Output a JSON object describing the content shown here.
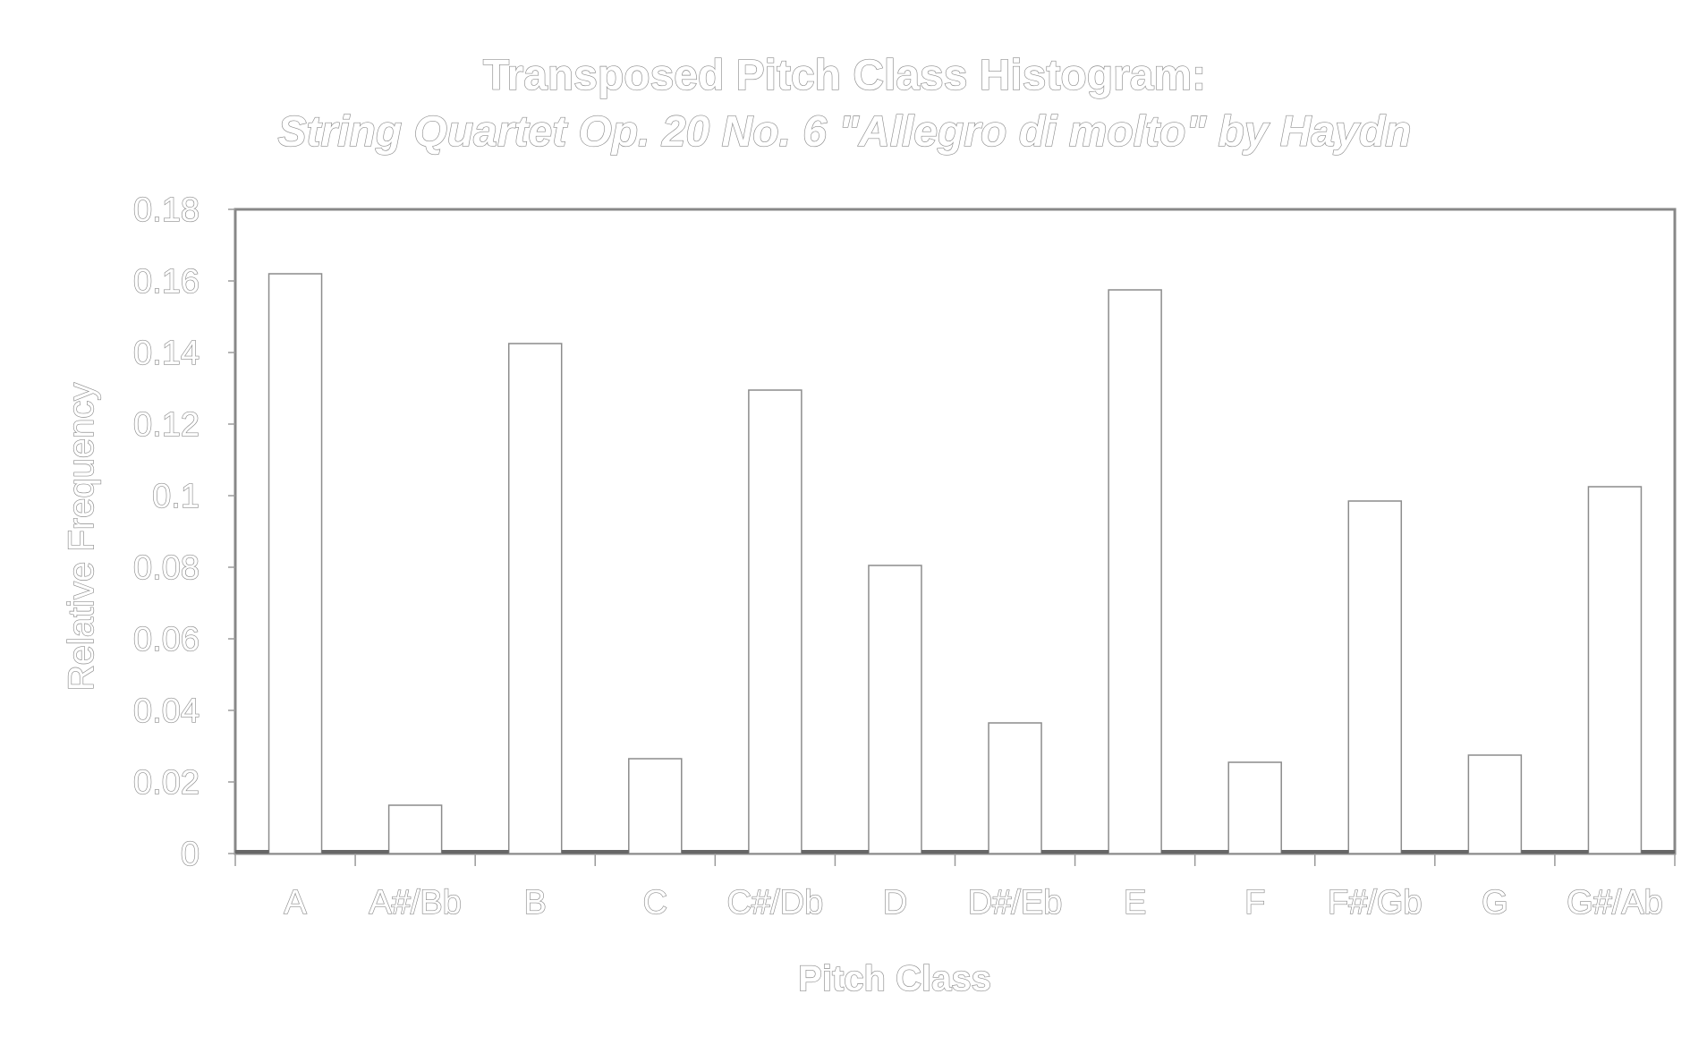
{
  "chart_data": {
    "type": "bar",
    "title": "Transposed Pitch Class Histogram:",
    "subtitle": "String Quartet Op. 20 No. 6 \"Allegro di molto\" by Haydn",
    "xlabel": "Pitch Class",
    "ylabel": "Relative Frequency",
    "categories": [
      "A",
      "A#/Bb",
      "B",
      "C",
      "C#/Db",
      "D",
      "D#/Eb",
      "E",
      "F",
      "F#/Gb",
      "G",
      "G#/Ab"
    ],
    "values": [
      0.162,
      0.0135,
      0.1425,
      0.0265,
      0.1295,
      0.0805,
      0.0365,
      0.1575,
      0.0255,
      0.0985,
      0.0275,
      0.1025
    ],
    "ylim": [
      0,
      0.18
    ],
    "yticks": [
      "0",
      "0.02",
      "0.04",
      "0.06",
      "0.08",
      "0.1",
      "0.12",
      "0.14",
      "0.16",
      "0.18"
    ],
    "grid": false,
    "legend": "none",
    "colors": {
      "bar_fill": "#ffffff",
      "outline": "#8c8c8c",
      "frame": "#888888",
      "background": "#ffffff"
    }
  }
}
